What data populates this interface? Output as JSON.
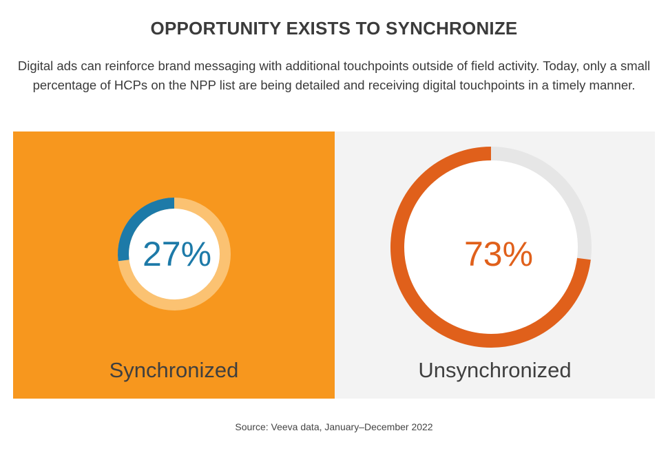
{
  "header": {
    "title": "OPPORTUNITY EXISTS TO SYNCHRONIZE",
    "subtitle": "Digital ads can reinforce brand messaging with additional touchpoints outside of field activity. Today, only a small percentage of HCPs on the NPP list are being detailed and receiving digital touchpoints in a timely manner."
  },
  "chart_data": {
    "type": "pie",
    "style": "donut",
    "categories": [
      "Synchronized",
      "Unsynchronized"
    ],
    "values": [
      27,
      73
    ],
    "value_labels": [
      "27%",
      "73%"
    ],
    "unit": "%"
  },
  "panels": {
    "left": {
      "label": "Synchronized",
      "value_label": "27%",
      "background": "#f7971e",
      "ring_color": "#1d7aa8",
      "track_color": "#fbc272",
      "text_color": "#1d7aa8"
    },
    "right": {
      "label": "Unsynchronized",
      "value_label": "73%",
      "background": "#f3f3f3",
      "ring_color": "#e0601b",
      "track_color": "#e6e6e6",
      "text_color": "#e0601b"
    }
  },
  "footer": {
    "source": "Source: Veeva data, January–December 2022"
  }
}
